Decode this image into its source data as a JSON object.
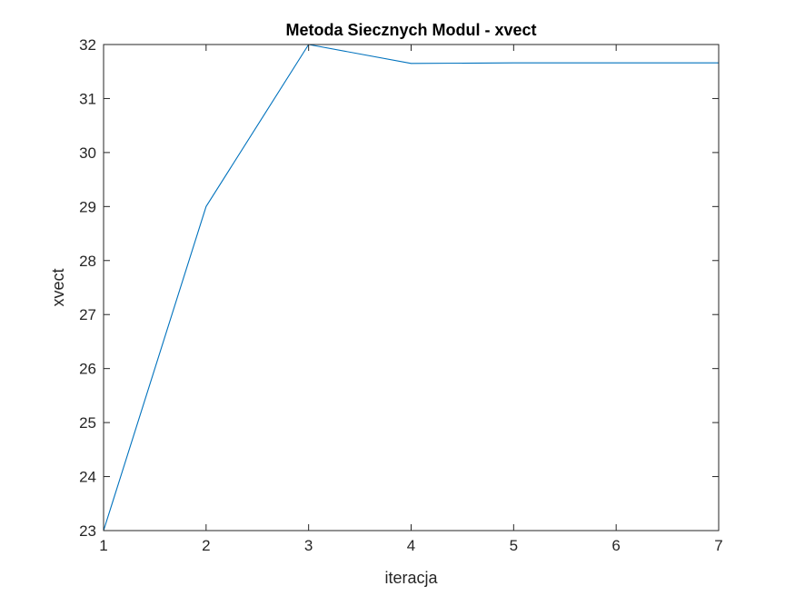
{
  "chart_data": {
    "type": "line",
    "title": "Metoda Siecznych Modul - xvect",
    "xlabel": "iteracja",
    "ylabel": "xvect",
    "xlim": [
      1,
      7
    ],
    "ylim": [
      23,
      32
    ],
    "xticks": [
      1,
      2,
      3,
      4,
      5,
      6,
      7
    ],
    "yticks": [
      23,
      24,
      25,
      26,
      27,
      28,
      29,
      30,
      31,
      32
    ],
    "grid": false,
    "series": [
      {
        "color": "#0072BD",
        "x": [
          1,
          2,
          3,
          4,
          5,
          6,
          7
        ],
        "values": [
          23,
          29,
          32,
          31.65,
          31.66,
          31.66,
          31.66
        ]
      }
    ]
  }
}
